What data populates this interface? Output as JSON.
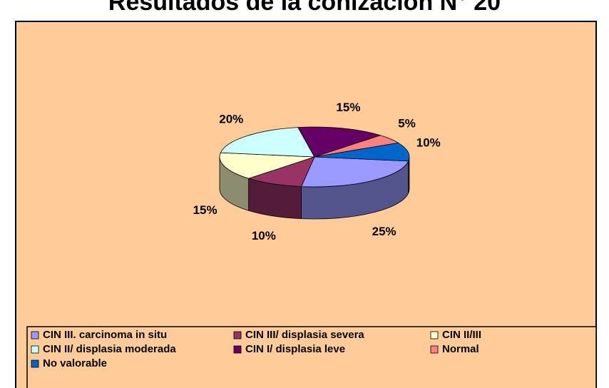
{
  "chart_data": {
    "type": "pie3d",
    "title": "Resultados de la conización N° 20",
    "categories": [
      "CIN III. carcinoma in situ",
      "CIN III/ displasia severa",
      "CIN II/III",
      "CIN II/ displasia moderada",
      "CIN I/ displasia leve",
      "Normal",
      "No valorable"
    ],
    "values": [
      25,
      10,
      15,
      20,
      15,
      5,
      10
    ],
    "value_labels": [
      "25%",
      "10%",
      "15%",
      "20%",
      "15%",
      "5%",
      "10%"
    ],
    "colors": [
      "#9999ff",
      "#993366",
      "#ffffcc",
      "#ccffff",
      "#660066",
      "#ff8080",
      "#0066cc"
    ],
    "legend": "bottom"
  }
}
